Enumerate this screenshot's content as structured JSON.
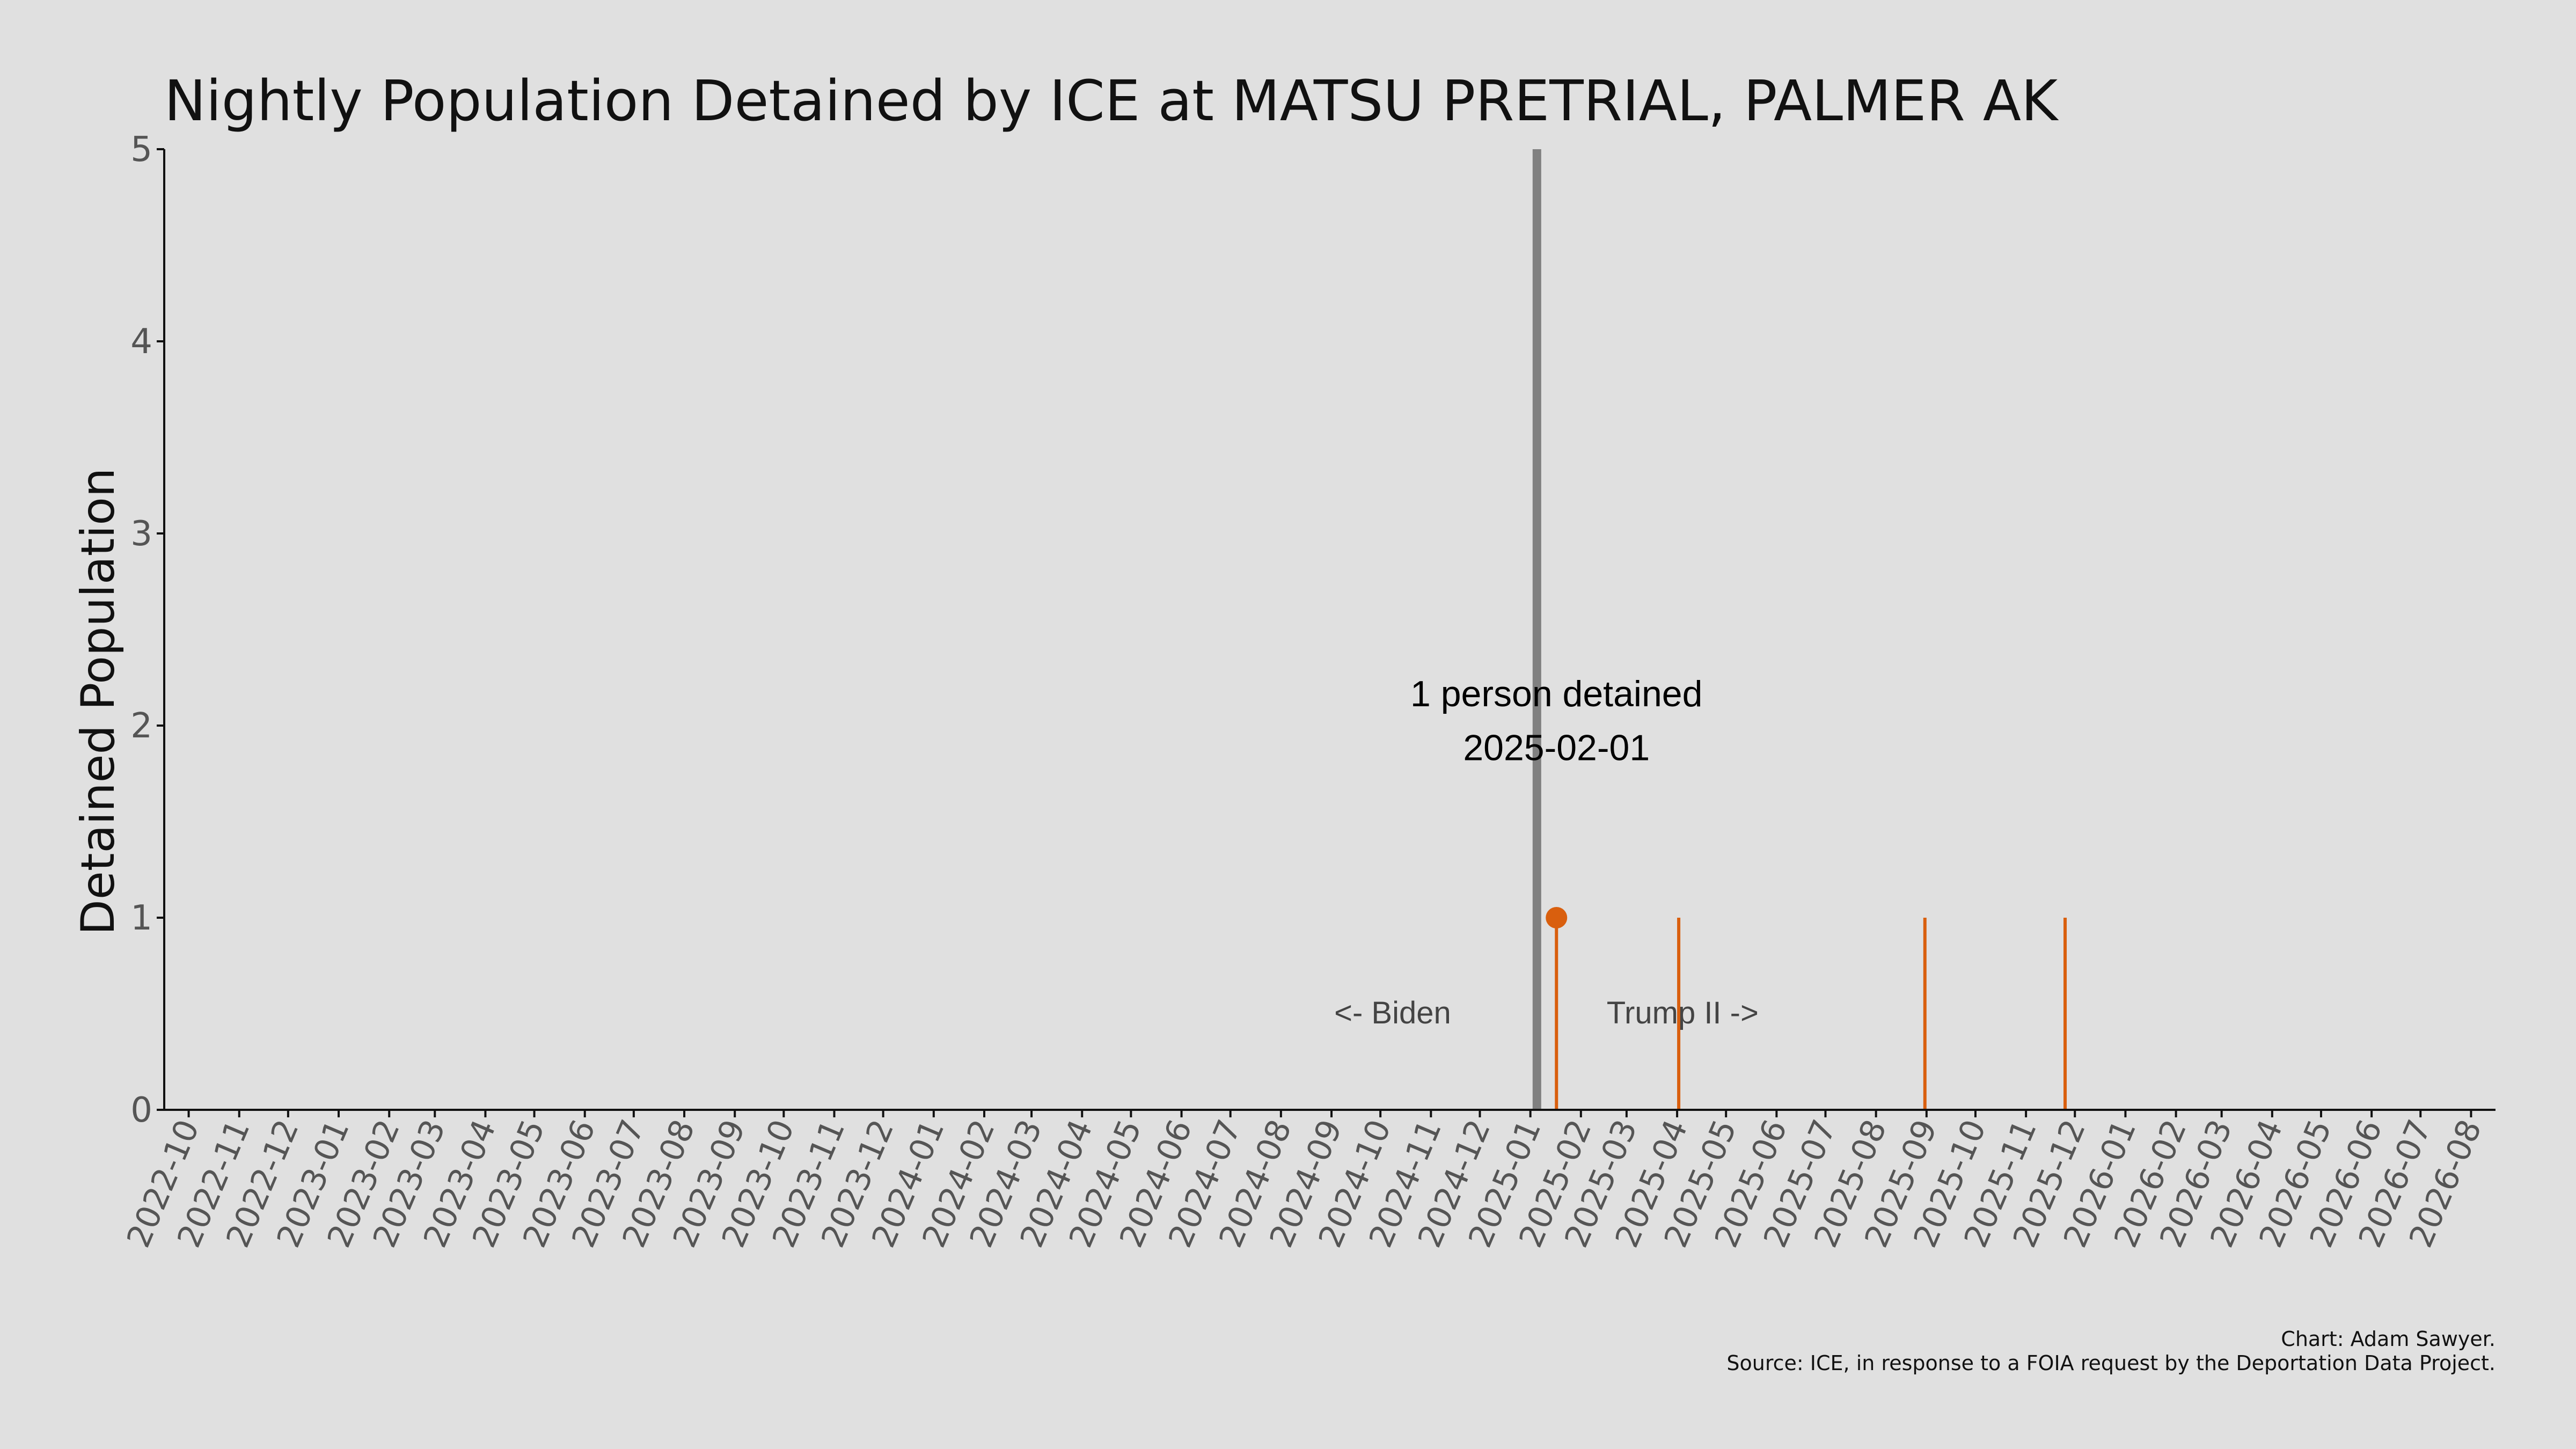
{
  "chart_data": {
    "type": "line",
    "title": "Nightly Population Detained by ICE at MATSU PRETRIAL, PALMER AK",
    "ylabel": "Detained Population",
    "xlabel": "",
    "ylim": [
      0,
      5
    ],
    "yticks": [
      0,
      1,
      2,
      3,
      4,
      5
    ],
    "xlim": [
      "2022-10-01",
      "2026-08-31"
    ],
    "x_tick_labels": [
      "2022-10",
      "2022-11",
      "2022-12",
      "2023-01",
      "2023-02",
      "2023-03",
      "2023-04",
      "2023-05",
      "2023-06",
      "2023-07",
      "2023-08",
      "2023-09",
      "2023-10",
      "2023-11",
      "2023-12",
      "2024-01",
      "2024-02",
      "2024-03",
      "2024-04",
      "2024-05",
      "2024-06",
      "2024-07",
      "2024-08",
      "2024-09",
      "2024-10",
      "2024-11",
      "2024-12",
      "2025-01",
      "2025-02",
      "2025-03",
      "2025-04",
      "2025-05",
      "2025-06",
      "2025-07",
      "2025-08",
      "2025-09",
      "2025-10",
      "2025-11",
      "2025-12",
      "2026-01",
      "2026-02",
      "2026-03",
      "2026-04",
      "2026-05",
      "2026-06",
      "2026-07",
      "2026-08"
    ],
    "grid": false,
    "series": [
      {
        "color": "#d95f0e",
        "points": [
          {
            "x": "2025-02-01",
            "y": 1
          },
          {
            "x": "2025-04-17",
            "y": 1
          },
          {
            "x": "2025-09-15",
            "y": 1
          },
          {
            "x": "2025-12-10",
            "y": 1
          }
        ]
      }
    ],
    "highlight": {
      "x": "2025-02-01",
      "y": 1,
      "label_line1": "1 person detained",
      "label_line2": "2025-02-01"
    },
    "reference_line": {
      "x": "2025-01-20",
      "color": "#808080",
      "left_label": "<- Biden",
      "right_label": "Trump II ->"
    },
    "credit_line1": "Chart: Adam Sawyer.",
    "credit_line2": "Source: ICE, in response to a FOIA request by the Deportation Data Project."
  }
}
